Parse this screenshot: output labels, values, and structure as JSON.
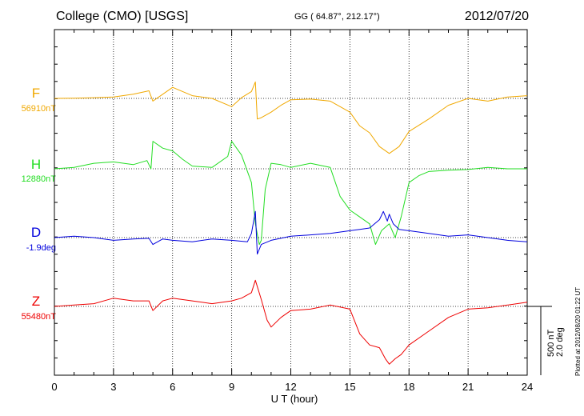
{
  "header": {
    "title": "College (CMO)  [USGS]",
    "coords": "GG ( 64.87°, 212.17°)",
    "date": "2012/07/20"
  },
  "scale": {
    "nt": "500 nT",
    "deg": "2.0 deg",
    "plotted": "Plotted at 2012/08/20 01:22 UT"
  },
  "colors": {
    "F": "#f0a800",
    "H": "#22dd22",
    "D": "#0000dd",
    "Z": "#ee0000"
  },
  "chart_data": {
    "type": "line",
    "title": "College (CMO)  [USGS]",
    "xlabel": "U T (hour)",
    "ylabel": "",
    "xlim": [
      0,
      24
    ],
    "x_ticks": [
      "0",
      "3",
      "6",
      "9",
      "12",
      "15",
      "18",
      "21",
      "24"
    ],
    "grid": true,
    "y_scale_note": "vertical bar = 500 nT / 2.0 deg; values are offsets from baseline in nT (D in scaled units)",
    "series": [
      {
        "name": "F",
        "label": "F",
        "baseline_label": "56910nT",
        "color": "#f0a800",
        "x": [
          0,
          1,
          2,
          3,
          4,
          4.8,
          5,
          5.5,
          6,
          7,
          8,
          9,
          9.5,
          10,
          10.2,
          10.3,
          10.5,
          11,
          11.5,
          12,
          13,
          14,
          15,
          15.5,
          16,
          16.5,
          17,
          17.5,
          18,
          19,
          20,
          21,
          22,
          23,
          24
        ],
        "y": [
          0,
          2,
          5,
          10,
          30,
          55,
          -20,
          30,
          80,
          20,
          0,
          -60,
          5,
          50,
          120,
          -150,
          -140,
          -100,
          -50,
          -10,
          -5,
          -20,
          -100,
          -200,
          -250,
          -350,
          -400,
          -350,
          -240,
          -150,
          -50,
          0,
          -20,
          10,
          20
        ]
      },
      {
        "name": "H",
        "label": "H",
        "baseline_label": "12880nT",
        "color": "#22dd22",
        "x": [
          0,
          1,
          2,
          3,
          4,
          4.7,
          4.9,
          5,
          5.5,
          6,
          6.5,
          7,
          8,
          8.8,
          9,
          9.5,
          10,
          10.2,
          10.4,
          10.5,
          10.7,
          11,
          11.5,
          12,
          13,
          14,
          14.5,
          15,
          15.5,
          16,
          16.3,
          16.6,
          17,
          17.3,
          17.6,
          18,
          18.5,
          19,
          20,
          21,
          22,
          23,
          24
        ],
        "y": [
          0,
          10,
          40,
          50,
          30,
          60,
          0,
          200,
          150,
          130,
          70,
          20,
          10,
          90,
          200,
          100,
          -100,
          -400,
          -550,
          -520,
          -150,
          40,
          30,
          10,
          40,
          10,
          -200,
          -300,
          -350,
          -400,
          -550,
          -450,
          -400,
          -500,
          -350,
          -100,
          -50,
          -20,
          -10,
          -5,
          10,
          0,
          0
        ]
      },
      {
        "name": "D",
        "label": "D",
        "baseline_label": "-1.9deg",
        "color": "#0000dd",
        "x": [
          0,
          1,
          2,
          3,
          4,
          4.8,
          5,
          5.5,
          6,
          7,
          8,
          9,
          9.8,
          10,
          10.2,
          10.3,
          10.5,
          11,
          12,
          13,
          14,
          15,
          15.5,
          16,
          16.5,
          16.7,
          16.9,
          17,
          17.2,
          17.5,
          18,
          19,
          20,
          21,
          22,
          23,
          24
        ],
        "y": [
          0,
          10,
          0,
          -20,
          -10,
          -5,
          -50,
          -10,
          -20,
          -30,
          -10,
          -20,
          -30,
          30,
          190,
          -120,
          -50,
          -20,
          10,
          20,
          30,
          50,
          60,
          70,
          130,
          190,
          120,
          170,
          100,
          60,
          50,
          30,
          10,
          20,
          0,
          -20,
          -30
        ]
      },
      {
        "name": "Z",
        "label": "Z",
        "baseline_label": "55480nT",
        "color": "#ee0000",
        "x": [
          0,
          1,
          2,
          3,
          4,
          4.8,
          5,
          5.5,
          6,
          7,
          8,
          9,
          9.5,
          10,
          10.2,
          10.5,
          10.8,
          11,
          11.5,
          12,
          13,
          14,
          15,
          15.5,
          16,
          16.5,
          16.8,
          17,
          17.3,
          17.6,
          18,
          19,
          20,
          21,
          22,
          23,
          24
        ],
        "y": [
          0,
          10,
          20,
          60,
          40,
          40,
          -30,
          40,
          60,
          40,
          20,
          40,
          60,
          100,
          190,
          50,
          -100,
          -150,
          -80,
          -30,
          -20,
          10,
          -20,
          -200,
          -280,
          -300,
          -380,
          -420,
          -380,
          -350,
          -280,
          -180,
          -80,
          -20,
          -10,
          10,
          30
        ]
      }
    ]
  }
}
